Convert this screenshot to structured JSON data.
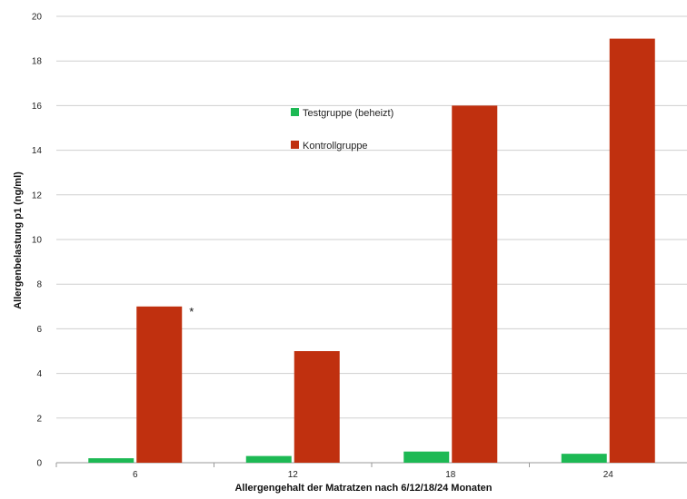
{
  "chart_data": {
    "type": "bar",
    "title": "",
    "xlabel": "Allergengehalt der Matratzen nach 6/12/18/24 Monaten",
    "ylabel": "Allergenbelastung p1 (ng/ml)",
    "categories": [
      "6",
      "12",
      "18",
      "24"
    ],
    "series": [
      {
        "name": "Testgruppe (beheizt)",
        "color": "#1db954",
        "values": [
          0.2,
          0.3,
          0.5,
          0.4
        ]
      },
      {
        "name": "Kontrollgruppe",
        "color": "#c0300f",
        "values": [
          7,
          5,
          16,
          19
        ]
      }
    ],
    "ylim": [
      0,
      20
    ],
    "yticks": [
      0,
      2,
      4,
      6,
      8,
      10,
      12,
      14,
      16,
      18,
      20
    ],
    "grid": true,
    "legend_position": "upper-center",
    "annotations": [
      {
        "text": "*",
        "category": "6",
        "series": "Kontrollgruppe"
      }
    ]
  }
}
